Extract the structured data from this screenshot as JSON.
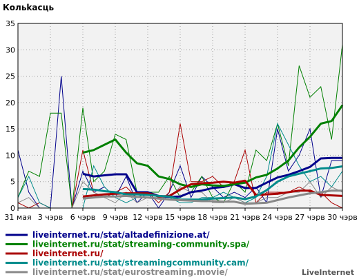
{
  "chart_data": {
    "type": "line",
    "title": "Кольkасць",
    "brand": "LiveInternet",
    "ylim": [
      0,
      35
    ],
    "yticks": [
      0,
      5,
      10,
      15,
      20,
      25,
      30,
      35
    ],
    "xlabels": [
      "31 мая",
      "3 чэрв",
      "6 чэрв",
      "9 чэрв",
      "12 чэрв",
      "15 чэрв",
      "18 чэрв",
      "21 чэрв",
      "24 чэрв",
      "27 чэрв",
      "30 чэрв"
    ],
    "x_count": 31,
    "grid": true,
    "legend_position": "bottom",
    "series": [
      {
        "name": "liveinternet.ru/stat/altadefinizione.at/",
        "color": "#00008b",
        "thin": [
          11,
          3,
          0,
          0,
          25,
          0,
          7,
          3,
          4,
          2,
          6,
          1,
          3,
          0,
          3,
          8,
          2,
          6,
          4,
          2,
          3,
          2,
          4,
          1,
          15,
          7,
          10,
          15,
          2,
          9,
          9
        ],
        "avg": [
          null,
          null,
          null,
          null,
          null,
          null,
          6.5,
          6,
          6.2,
          6.4,
          6.4,
          3,
          3,
          2.3,
          2.1,
          2.2,
          3,
          3.3,
          3.8,
          4,
          4.5,
          3.8,
          3.8,
          4.8,
          5.8,
          6.3,
          7,
          7.8,
          9.4,
          9.5,
          9.5
        ]
      },
      {
        "name": "liveinternet.ru/stat/streaming-community.spa/",
        "color": "#008000",
        "thin": [
          2,
          7,
          6,
          18,
          18,
          0,
          19,
          5,
          7,
          14,
          13,
          3,
          3,
          3,
          6,
          2,
          3,
          6,
          2,
          1,
          5,
          3,
          11,
          9,
          16,
          8,
          27,
          21,
          23,
          13,
          31
        ],
        "avg": [
          null,
          null,
          null,
          null,
          null,
          null,
          10.5,
          11,
          12,
          13,
          10.5,
          8.5,
          8,
          6,
          5.5,
          4.5,
          4,
          4.5,
          4.3,
          4.2,
          4.5,
          4.8,
          5.8,
          6.3,
          7.5,
          9,
          11.5,
          13.5,
          16,
          16.5,
          19.5
        ]
      },
      {
        "name": "liveinternet.ru/",
        "color": "#aa0000",
        "thin": [
          1,
          0,
          1,
          0,
          0,
          0,
          11,
          3,
          2,
          3,
          4,
          2,
          3,
          1,
          3,
          16,
          5,
          5,
          6,
          4,
          5,
          11,
          1,
          3,
          3,
          3,
          4,
          3,
          3,
          1,
          0
        ],
        "avg": [
          null,
          null,
          null,
          null,
          null,
          null,
          2.2,
          2.4,
          2.6,
          2.7,
          2.8,
          2.8,
          2.8,
          2.2,
          2.3,
          3.5,
          4.5,
          4.7,
          4.8,
          5.0,
          4.8,
          5.2,
          2.5,
          2.6,
          2.7,
          3.0,
          3.3,
          3.3,
          2.5,
          2.4,
          2.3
        ]
      },
      {
        "name": "liveinternet.ru/stat/streamingcommunity.cam/",
        "color": "#008b8b",
        "thin": [
          2,
          6,
          1,
          0,
          0,
          0,
          0,
          8,
          4,
          2,
          1,
          2,
          3,
          2,
          2,
          1,
          1,
          2,
          2,
          3,
          2,
          1,
          2,
          6,
          16,
          12,
          8,
          5,
          6,
          4,
          7
        ],
        "avg": [
          null,
          null,
          null,
          null,
          null,
          null,
          3.6,
          3.5,
          3.2,
          3.0,
          2.6,
          2.6,
          2.5,
          2.3,
          2.2,
          1.6,
          1.6,
          1.6,
          1.8,
          1.9,
          2.0,
          1.7,
          2.2,
          3.4,
          5.0,
          6.0,
          6.5,
          7.0,
          7.5,
          7.6,
          7.9
        ]
      },
      {
        "name": "liveinternet.ru/stat/eurostreaming.movie/",
        "color": "#888888",
        "thin": [
          1,
          2,
          0,
          0,
          0,
          0,
          5,
          3,
          2,
          1,
          3,
          1,
          2,
          2,
          2,
          4,
          3,
          3,
          1,
          1,
          2,
          1,
          1,
          2,
          2,
          3,
          3,
          5,
          2,
          4,
          3
        ],
        "avg": [
          null,
          null,
          null,
          null,
          null,
          null,
          1.8,
          2.0,
          2.2,
          2.2,
          2.3,
          2.1,
          2.0,
          1.8,
          1.6,
          1.5,
          1.4,
          1.3,
          1.3,
          1.2,
          1.2,
          0.8,
          0.9,
          1.0,
          1.5,
          2.0,
          2.4,
          2.8,
          3.0,
          3.3,
          3.3
        ]
      }
    ]
  }
}
